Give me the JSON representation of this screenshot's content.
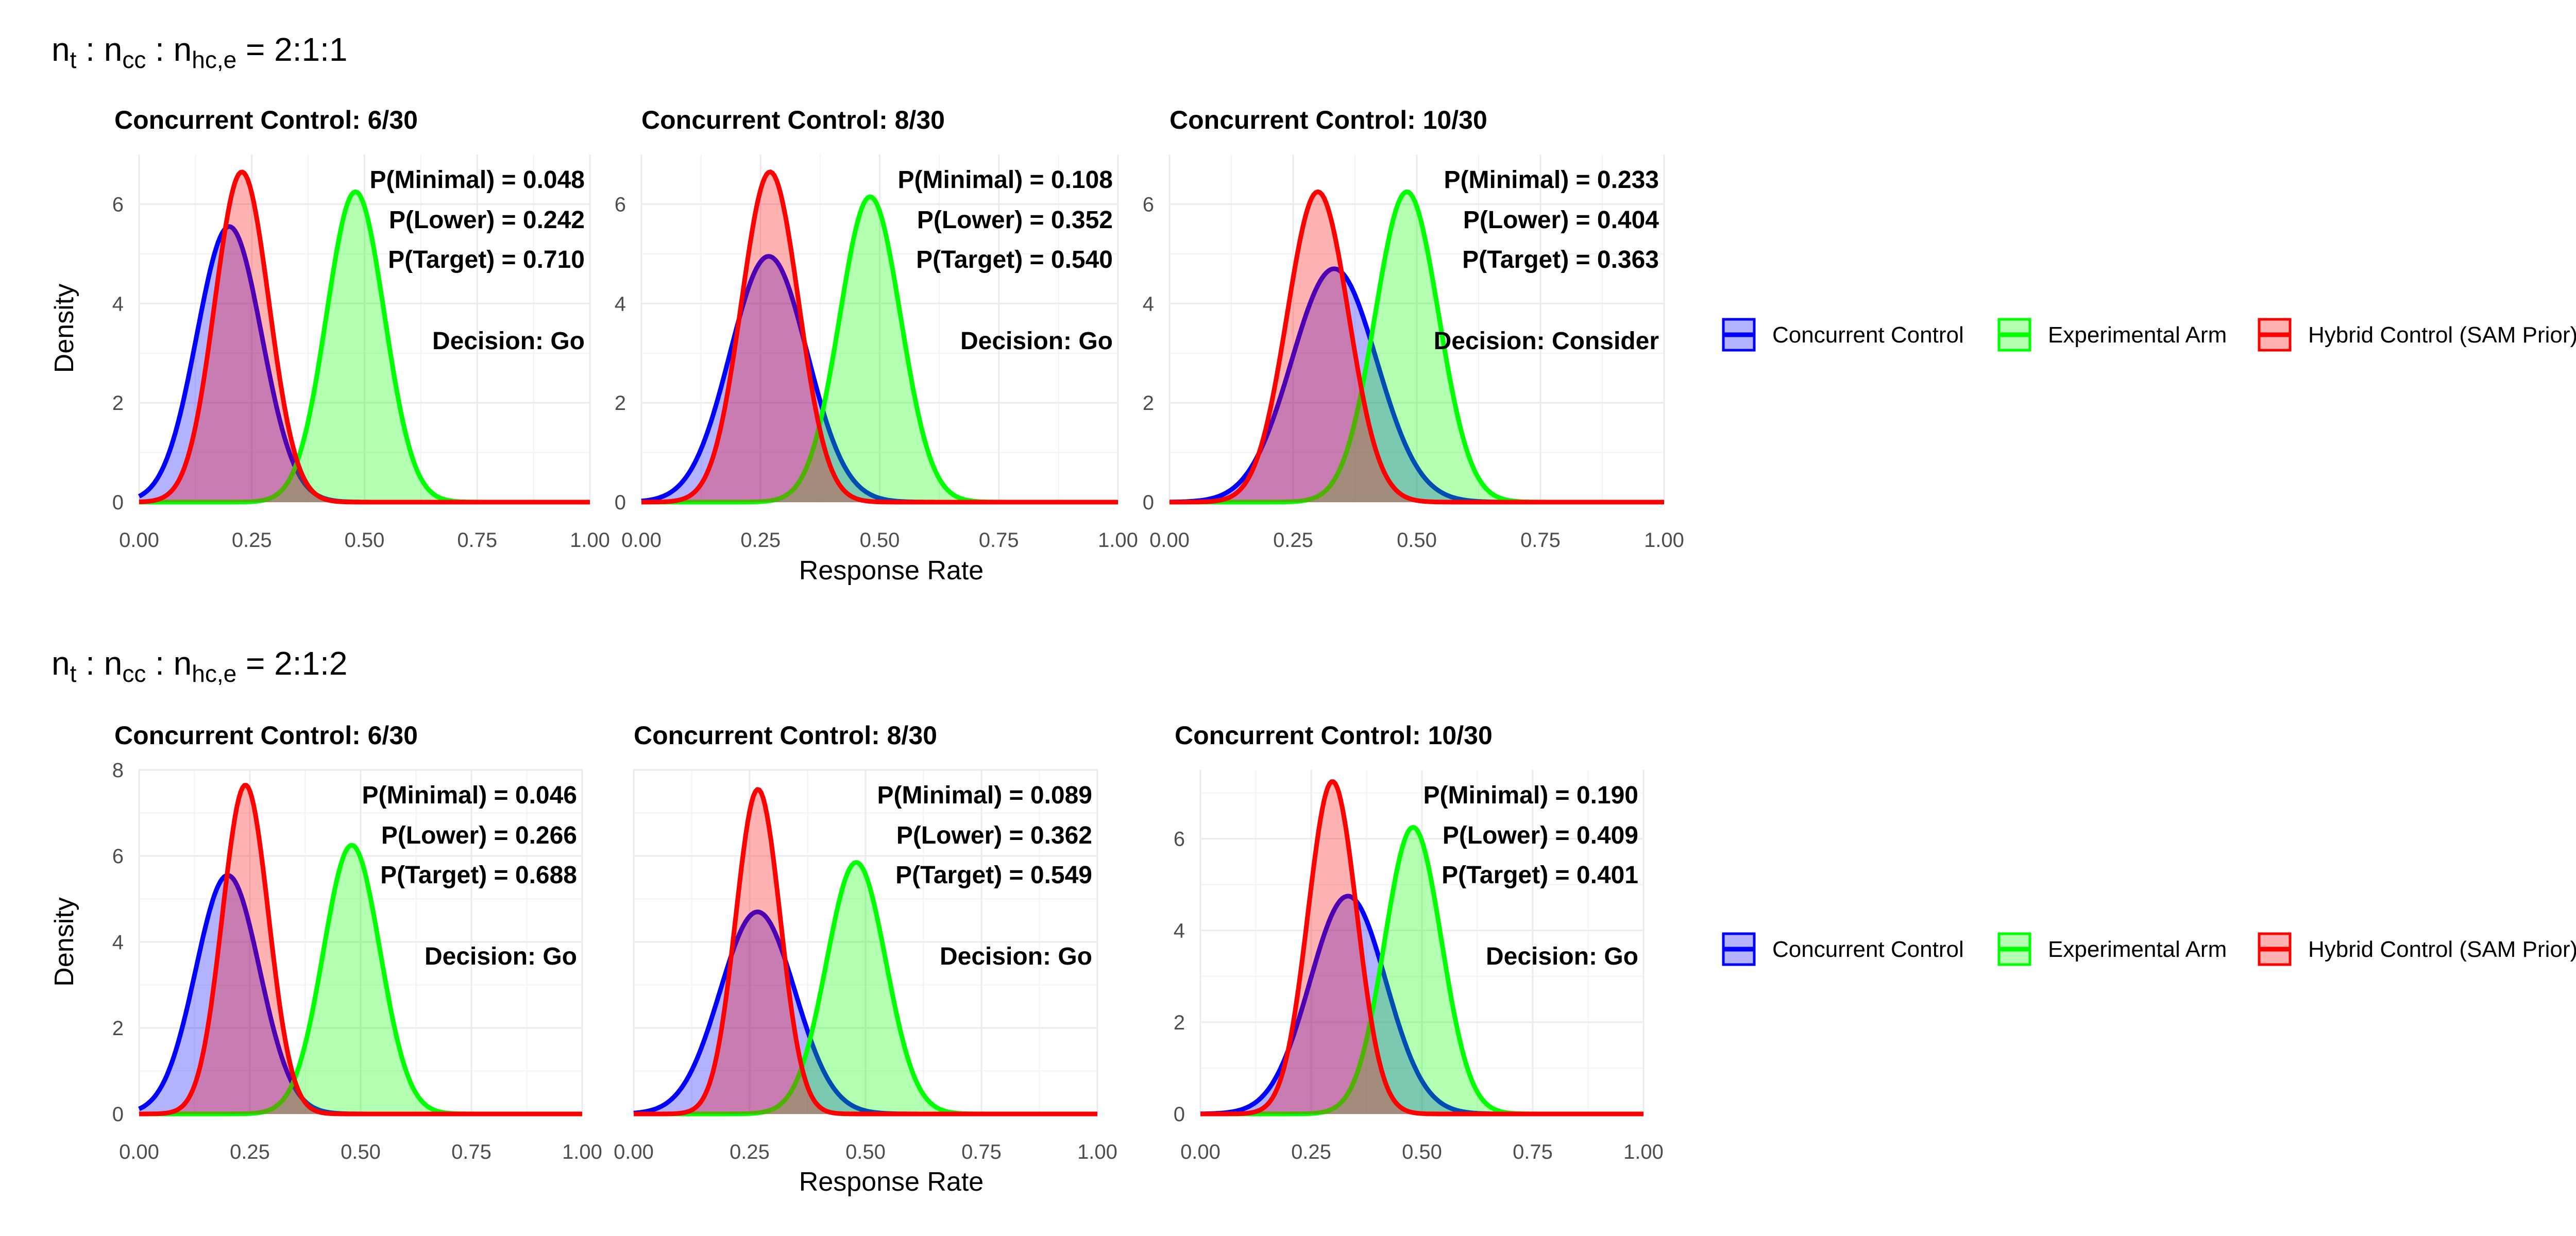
{
  "chart_data": [
    {
      "type": "area",
      "row_title": {
        "a": "n",
        "a_sub": "t",
        "b": " : n",
        "b_sub": "cc",
        "c": " : n",
        "c_sub": "hc,e",
        "d": " = 2:1:1"
      },
      "ylabel": "Density",
      "xlabel": "Response Rate",
      "xlim": [
        0,
        1
      ],
      "x_ticks": [
        "0.00",
        "0.25",
        "0.50",
        "0.75",
        "1.00"
      ],
      "ylim": [
        0,
        7
      ],
      "y_ticks": [
        "0",
        "2",
        "4",
        "6"
      ],
      "grid": true,
      "legend": {
        "position": "right"
      },
      "panels": [
        {
          "title": "Concurrent Control: 6/30",
          "series": [
            {
              "name": "Concurrent Control",
              "mean": 0.2,
              "sd": 0.072,
              "peak": 5.55
            },
            {
              "name": "Experimental Arm",
              "mean": 0.48,
              "sd": 0.064,
              "peak": 6.25
            },
            {
              "name": "Hybrid Control (SAM Prior)",
              "mean": 0.228,
              "sd": 0.06,
              "peak": 6.65
            }
          ],
          "annotations": [
            "P(Minimal) = 0.048",
            "P(Lower) = 0.242",
            "P(Target) = 0.710",
            "Decision: Go"
          ]
        },
        {
          "title": "Concurrent Control: 8/30",
          "series": [
            {
              "name": "Concurrent Control",
              "mean": 0.267,
              "sd": 0.081,
              "peak": 4.95
            },
            {
              "name": "Experimental Arm",
              "mean": 0.48,
              "sd": 0.064,
              "peak": 6.15
            },
            {
              "name": "Hybrid Control (SAM Prior)",
              "mean": 0.27,
              "sd": 0.06,
              "peak": 6.65
            }
          ],
          "annotations": [
            "P(Minimal) = 0.108",
            "P(Lower) = 0.352",
            "P(Target) = 0.540",
            "Decision: Go"
          ]
        },
        {
          "title": "Concurrent Control: 10/30",
          "series": [
            {
              "name": "Concurrent Control",
              "mean": 0.333,
              "sd": 0.086,
              "peak": 4.7
            },
            {
              "name": "Experimental Arm",
              "mean": 0.48,
              "sd": 0.064,
              "peak": 6.25
            },
            {
              "name": "Hybrid Control (SAM Prior)",
              "mean": 0.3,
              "sd": 0.062,
              "peak": 6.25
            }
          ],
          "annotations": [
            "P(Minimal) = 0.233",
            "P(Lower) = 0.404",
            "P(Target) = 0.363",
            "Decision: Consider"
          ]
        }
      ]
    },
    {
      "type": "area",
      "row_title": {
        "a": "n",
        "a_sub": "t",
        "b": " : n",
        "b_sub": "cc",
        "c": " : n",
        "c_sub": "hc,e",
        "d": " = 2:1:2"
      },
      "ylabel": "Density",
      "xlabel": "Response Rate",
      "xlim": [
        0,
        1
      ],
      "x_ticks": [
        "0.00",
        "0.25",
        "0.50",
        "0.75",
        "1.00"
      ],
      "grid": true,
      "legend": {
        "position": "right"
      },
      "panels": [
        {
          "title": "Concurrent Control: 6/30",
          "ylim": [
            0,
            8
          ],
          "y_ticks": [
            "0",
            "2",
            "4",
            "6",
            "8"
          ],
          "series": [
            {
              "name": "Concurrent Control",
              "mean": 0.2,
              "sd": 0.072,
              "peak": 5.55
            },
            {
              "name": "Experimental Arm",
              "mean": 0.48,
              "sd": 0.064,
              "peak": 6.25
            },
            {
              "name": "Hybrid Control (SAM Prior)",
              "mean": 0.24,
              "sd": 0.052,
              "peak": 7.65
            }
          ],
          "annotations": [
            "P(Minimal) = 0.046",
            "P(Lower) = 0.266",
            "P(Target) = 0.688",
            "Decision: Go"
          ]
        },
        {
          "title": "Concurrent Control: 8/30",
          "ylim": [
            0,
            8
          ],
          "y_ticks": [],
          "series": [
            {
              "name": "Concurrent Control",
              "mean": 0.267,
              "sd": 0.081,
              "peak": 4.7
            },
            {
              "name": "Experimental Arm",
              "mean": 0.48,
              "sd": 0.064,
              "peak": 5.85
            },
            {
              "name": "Hybrid Control (SAM Prior)",
              "mean": 0.268,
              "sd": 0.048,
              "peak": 7.55
            }
          ],
          "annotations": [
            "P(Minimal) = 0.089",
            "P(Lower) = 0.362",
            "P(Target) = 0.549",
            "Decision: Go"
          ]
        },
        {
          "title": "Concurrent Control: 10/30",
          "ylim": [
            0,
            7.5
          ],
          "y_ticks": [
            "0",
            "2",
            "4",
            "6"
          ],
          "series": [
            {
              "name": "Concurrent Control",
              "mean": 0.333,
              "sd": 0.086,
              "peak": 4.75
            },
            {
              "name": "Experimental Arm",
              "mean": 0.48,
              "sd": 0.064,
              "peak": 6.25
            },
            {
              "name": "Hybrid Control (SAM Prior)",
              "mean": 0.298,
              "sd": 0.055,
              "peak": 7.25
            }
          ],
          "annotations": [
            "P(Minimal) = 0.190",
            "P(Lower) = 0.409",
            "P(Target) = 0.401",
            "Decision: Go"
          ]
        }
      ]
    }
  ],
  "colors": {
    "concurrent": "#0000ff",
    "experimental": "#00ff00",
    "hybrid": "#ff0000"
  }
}
